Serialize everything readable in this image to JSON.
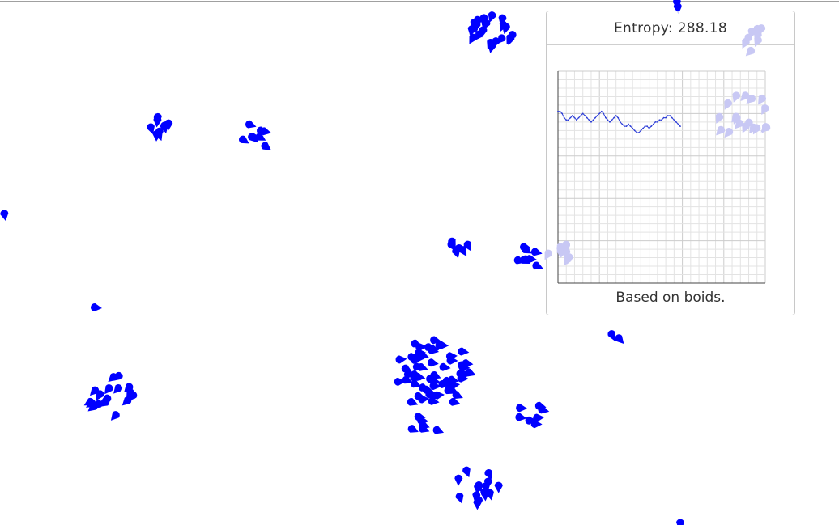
{
  "panel": {
    "entropy_label": "Entropy:",
    "entropy_value": "288.18",
    "credit_prefix": "Based on ",
    "credit_link": "boids",
    "credit_suffix": "."
  },
  "colors": {
    "boid": "#0000ff",
    "boid_faded": "#c8c8f4",
    "chart_line": "#2a3bd6",
    "grid_minor": "#e3e3e3",
    "grid_major": "#cccccc",
    "axis": "#444444"
  },
  "chart_data": {
    "type": "line",
    "title": "",
    "xlabel": "",
    "ylabel": "",
    "x": [
      0,
      1,
      2,
      3,
      4,
      5,
      6,
      7,
      8,
      9,
      10,
      11,
      12,
      13,
      14,
      15,
      16,
      17,
      18,
      19,
      20,
      21,
      22,
      23,
      24,
      25,
      26,
      27,
      28,
      29,
      30,
      31,
      32,
      33,
      34,
      35,
      36,
      37,
      38,
      39,
      40,
      41,
      42,
      43,
      44,
      45,
      46,
      47,
      48,
      49,
      50,
      51,
      52,
      53,
      54,
      55,
      56,
      57,
      58,
      59
    ],
    "y": [
      0.81,
      0.81,
      0.8,
      0.78,
      0.77,
      0.77,
      0.78,
      0.79,
      0.78,
      0.77,
      0.78,
      0.79,
      0.8,
      0.79,
      0.78,
      0.77,
      0.76,
      0.77,
      0.78,
      0.79,
      0.8,
      0.81,
      0.8,
      0.78,
      0.77,
      0.76,
      0.77,
      0.78,
      0.79,
      0.78,
      0.76,
      0.75,
      0.74,
      0.74,
      0.75,
      0.74,
      0.73,
      0.72,
      0.71,
      0.71,
      0.72,
      0.73,
      0.74,
      0.74,
      0.73,
      0.74,
      0.75,
      0.76,
      0.76,
      0.77,
      0.77,
      0.78,
      0.78,
      0.79,
      0.79,
      0.78,
      0.77,
      0.76,
      0.75,
      0.74
    ],
    "xlim": [
      0,
      100
    ],
    "ylim": [
      0,
      1
    ],
    "grid": true
  }
}
